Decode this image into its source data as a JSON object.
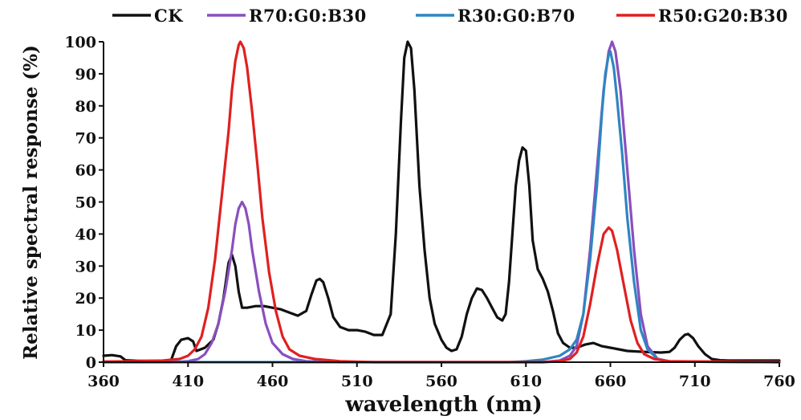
{
  "chart_data": {
    "type": "line",
    "xlabel": "wavelength (nm)",
    "ylabel": "Relative spectral response (%)",
    "xlim": [
      360,
      760
    ],
    "ylim": [
      0,
      100
    ],
    "xticks": [
      360,
      410,
      460,
      510,
      560,
      610,
      660,
      710,
      760
    ],
    "yticks": [
      0,
      10,
      20,
      30,
      40,
      50,
      60,
      70,
      80,
      90,
      100
    ],
    "grid": false,
    "legend_position": "top",
    "series": [
      {
        "name": "CK",
        "color": "#111111",
        "points": [
          [
            360,
            2
          ],
          [
            365,
            2.2
          ],
          [
            370,
            1.8
          ],
          [
            373,
            0.6
          ],
          [
            380,
            0.4
          ],
          [
            395,
            0.4
          ],
          [
            400,
            0.6
          ],
          [
            403,
            5
          ],
          [
            406,
            7
          ],
          [
            410,
            7.5
          ],
          [
            413,
            6.5
          ],
          [
            415,
            3.5
          ],
          [
            420,
            4.5
          ],
          [
            425,
            7
          ],
          [
            428,
            12
          ],
          [
            431,
            20
          ],
          [
            434,
            31
          ],
          [
            436,
            33.5
          ],
          [
            438,
            30
          ],
          [
            440,
            22
          ],
          [
            442,
            17
          ],
          [
            445,
            17
          ],
          [
            450,
            17.5
          ],
          [
            455,
            17.5
          ],
          [
            460,
            17
          ],
          [
            465,
            16.5
          ],
          [
            470,
            15.5
          ],
          [
            475,
            14.5
          ],
          [
            480,
            16
          ],
          [
            483,
            21
          ],
          [
            486,
            25.5
          ],
          [
            488,
            26
          ],
          [
            490,
            25
          ],
          [
            493,
            20
          ],
          [
            496,
            14
          ],
          [
            500,
            11
          ],
          [
            505,
            10
          ],
          [
            510,
            10
          ],
          [
            515,
            9.5
          ],
          [
            520,
            8.5
          ],
          [
            525,
            8.5
          ],
          [
            530,
            15
          ],
          [
            533,
            40
          ],
          [
            536,
            75
          ],
          [
            538,
            95
          ],
          [
            540,
            100
          ],
          [
            542,
            98
          ],
          [
            544,
            85
          ],
          [
            547,
            55
          ],
          [
            550,
            35
          ],
          [
            553,
            20
          ],
          [
            556,
            12
          ],
          [
            560,
            7
          ],
          [
            563,
            4.5
          ],
          [
            566,
            3.5
          ],
          [
            569,
            4
          ],
          [
            572,
            8
          ],
          [
            575,
            15
          ],
          [
            578,
            20
          ],
          [
            581,
            23
          ],
          [
            584,
            22.5
          ],
          [
            587,
            20
          ],
          [
            590,
            17
          ],
          [
            593,
            14
          ],
          [
            596,
            13
          ],
          [
            598,
            15
          ],
          [
            600,
            25
          ],
          [
            602,
            40
          ],
          [
            604,
            55
          ],
          [
            606,
            63
          ],
          [
            608,
            67
          ],
          [
            610,
            66
          ],
          [
            612,
            55
          ],
          [
            614,
            38
          ],
          [
            617,
            29
          ],
          [
            620,
            26
          ],
          [
            623,
            22
          ],
          [
            626,
            16
          ],
          [
            629,
            9
          ],
          [
            632,
            6
          ],
          [
            636,
            4.5
          ],
          [
            640,
            4.5
          ],
          [
            645,
            5.5
          ],
          [
            650,
            6
          ],
          [
            655,
            5
          ],
          [
            660,
            4.5
          ],
          [
            665,
            4
          ],
          [
            670,
            3.5
          ],
          [
            680,
            3.2
          ],
          [
            690,
            3
          ],
          [
            695,
            3.2
          ],
          [
            698,
            4.5
          ],
          [
            701,
            7
          ],
          [
            704,
            8.5
          ],
          [
            706,
            8.8
          ],
          [
            709,
            7.5
          ],
          [
            712,
            5
          ],
          [
            716,
            2.5
          ],
          [
            720,
            1
          ],
          [
            725,
            0.6
          ],
          [
            730,
            0.5
          ],
          [
            760,
            0.5
          ]
        ]
      },
      {
        "name": "R70:G0:B30",
        "color": "#8a4fbf",
        "points": [
          [
            360,
            0
          ],
          [
            400,
            0
          ],
          [
            410,
            0.3
          ],
          [
            416,
            1
          ],
          [
            420,
            2.5
          ],
          [
            424,
            6
          ],
          [
            428,
            12
          ],
          [
            432,
            22
          ],
          [
            436,
            35
          ],
          [
            438,
            43
          ],
          [
            440,
            48
          ],
          [
            442,
            50
          ],
          [
            444,
            48
          ],
          [
            446,
            43
          ],
          [
            448,
            35
          ],
          [
            452,
            22
          ],
          [
            456,
            12
          ],
          [
            460,
            6
          ],
          [
            466,
            2.5
          ],
          [
            472,
            1
          ],
          [
            480,
            0.3
          ],
          [
            500,
            0
          ],
          [
            620,
            0
          ],
          [
            630,
            0.5
          ],
          [
            636,
            2
          ],
          [
            640,
            5
          ],
          [
            644,
            15
          ],
          [
            648,
            35
          ],
          [
            652,
            60
          ],
          [
            656,
            85
          ],
          [
            659,
            97
          ],
          [
            661,
            100
          ],
          [
            663,
            97
          ],
          [
            666,
            85
          ],
          [
            670,
            60
          ],
          [
            674,
            35
          ],
          [
            678,
            15
          ],
          [
            682,
            5
          ],
          [
            688,
            1
          ],
          [
            695,
            0.2
          ],
          [
            760,
            0
          ]
        ]
      },
      {
        "name": "R30:G0:B70",
        "color": "#2e86c1",
        "points": [
          [
            360,
            0
          ],
          [
            600,
            0
          ],
          [
            610,
            0.3
          ],
          [
            620,
            0.8
          ],
          [
            630,
            2
          ],
          [
            636,
            4
          ],
          [
            640,
            7
          ],
          [
            644,
            15
          ],
          [
            648,
            32
          ],
          [
            652,
            55
          ],
          [
            655,
            78
          ],
          [
            657,
            90
          ],
          [
            659,
            96
          ],
          [
            660,
            97
          ],
          [
            662,
            92
          ],
          [
            664,
            82
          ],
          [
            667,
            65
          ],
          [
            670,
            45
          ],
          [
            674,
            25
          ],
          [
            678,
            10
          ],
          [
            682,
            4
          ],
          [
            688,
            1
          ],
          [
            695,
            0.2
          ],
          [
            760,
            0
          ]
        ]
      },
      {
        "name": "R50:G20:B30",
        "color": "#e02020",
        "points": [
          [
            360,
            0.2
          ],
          [
            380,
            0.3
          ],
          [
            395,
            0.5
          ],
          [
            405,
            1
          ],
          [
            410,
            2
          ],
          [
            414,
            4
          ],
          [
            418,
            8
          ],
          [
            422,
            17
          ],
          [
            426,
            32
          ],
          [
            430,
            52
          ],
          [
            434,
            72
          ],
          [
            436,
            85
          ],
          [
            438,
            94
          ],
          [
            440,
            99
          ],
          [
            441,
            100
          ],
          [
            443,
            98
          ],
          [
            445,
            92
          ],
          [
            448,
            78
          ],
          [
            451,
            62
          ],
          [
            454,
            45
          ],
          [
            458,
            28
          ],
          [
            462,
            16
          ],
          [
            466,
            8
          ],
          [
            470,
            4
          ],
          [
            476,
            2
          ],
          [
            485,
            1
          ],
          [
            500,
            0.3
          ],
          [
            520,
            0
          ],
          [
            620,
            0
          ],
          [
            630,
            0.3
          ],
          [
            636,
            1
          ],
          [
            640,
            3
          ],
          [
            644,
            8
          ],
          [
            648,
            18
          ],
          [
            652,
            30
          ],
          [
            656,
            40
          ],
          [
            659,
            42
          ],
          [
            661,
            41
          ],
          [
            664,
            35
          ],
          [
            668,
            24
          ],
          [
            672,
            13
          ],
          [
            676,
            6
          ],
          [
            680,
            2.5
          ],
          [
            686,
            1
          ],
          [
            695,
            0.3
          ],
          [
            760,
            0
          ]
        ]
      }
    ]
  }
}
